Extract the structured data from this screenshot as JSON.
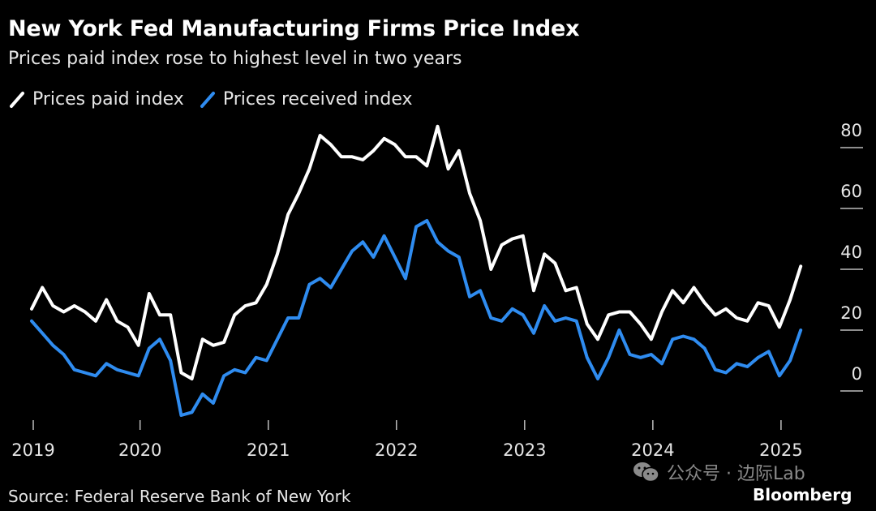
{
  "header": {
    "title": "New York Fed Manufacturing Firms Price Index",
    "subtitle": "Prices paid index rose to highest level in two years"
  },
  "footer": {
    "source": "Source: Federal Reserve Bank of New York",
    "brand": "Bloomberg",
    "watermark": "公众号 · 边际Lab"
  },
  "chart_data": {
    "type": "line",
    "title": "New York Fed Manufacturing Firms Price Index",
    "subtitle": "Prices paid index rose to highest level in two years",
    "xlabel": "",
    "ylabel": "",
    "x_start": "2019-03",
    "x_frequency": "monthly",
    "x_tick_labels": [
      "2019",
      "2020",
      "2021",
      "2022",
      "2023",
      "2024",
      "2025"
    ],
    "x_tick_indices": [
      0,
      10,
      22,
      34,
      46,
      58,
      70
    ],
    "y_ticks": [
      0,
      20,
      40,
      60,
      80
    ],
    "ylim": [
      -10,
      90
    ],
    "y_axis_side": "right",
    "grid": false,
    "legend_position": "top-left",
    "series": [
      {
        "name": "Prices paid index",
        "color": "#ffffff",
        "values": [
          27,
          34,
          28,
          26,
          28,
          26,
          23,
          30,
          23,
          21,
          15,
          32,
          25,
          25,
          6,
          4,
          17,
          15,
          16,
          25,
          28,
          29,
          35,
          45,
          58,
          65,
          73,
          84,
          81,
          77,
          77,
          76,
          79,
          83,
          81,
          77,
          77,
          74,
          87,
          73,
          79,
          65,
          56,
          40,
          48,
          50,
          51,
          33,
          45,
          42,
          33,
          34,
          22,
          17,
          25,
          26,
          26,
          22,
          17,
          26,
          33,
          29,
          34,
          29,
          25,
          27,
          24,
          23,
          29,
          28,
          21,
          30,
          41
        ]
      },
      {
        "name": "Prices received index",
        "color": "#2f8cf0",
        "values": [
          23,
          19,
          15,
          12,
          7,
          6,
          5,
          9,
          7,
          6,
          5,
          14,
          17,
          10,
          -8,
          -7,
          -1,
          -4,
          5,
          7,
          6,
          11,
          10,
          17,
          24,
          24,
          35,
          37,
          34,
          40,
          46,
          49,
          44,
          51,
          44,
          37,
          54,
          56,
          49,
          46,
          44,
          31,
          33,
          24,
          23,
          27,
          25,
          19,
          28,
          23,
          24,
          23,
          11,
          4,
          11,
          20,
          12,
          11,
          12,
          9,
          17,
          18,
          17,
          14,
          7,
          6,
          9,
          8,
          11,
          13,
          5,
          10,
          20
        ]
      }
    ]
  }
}
